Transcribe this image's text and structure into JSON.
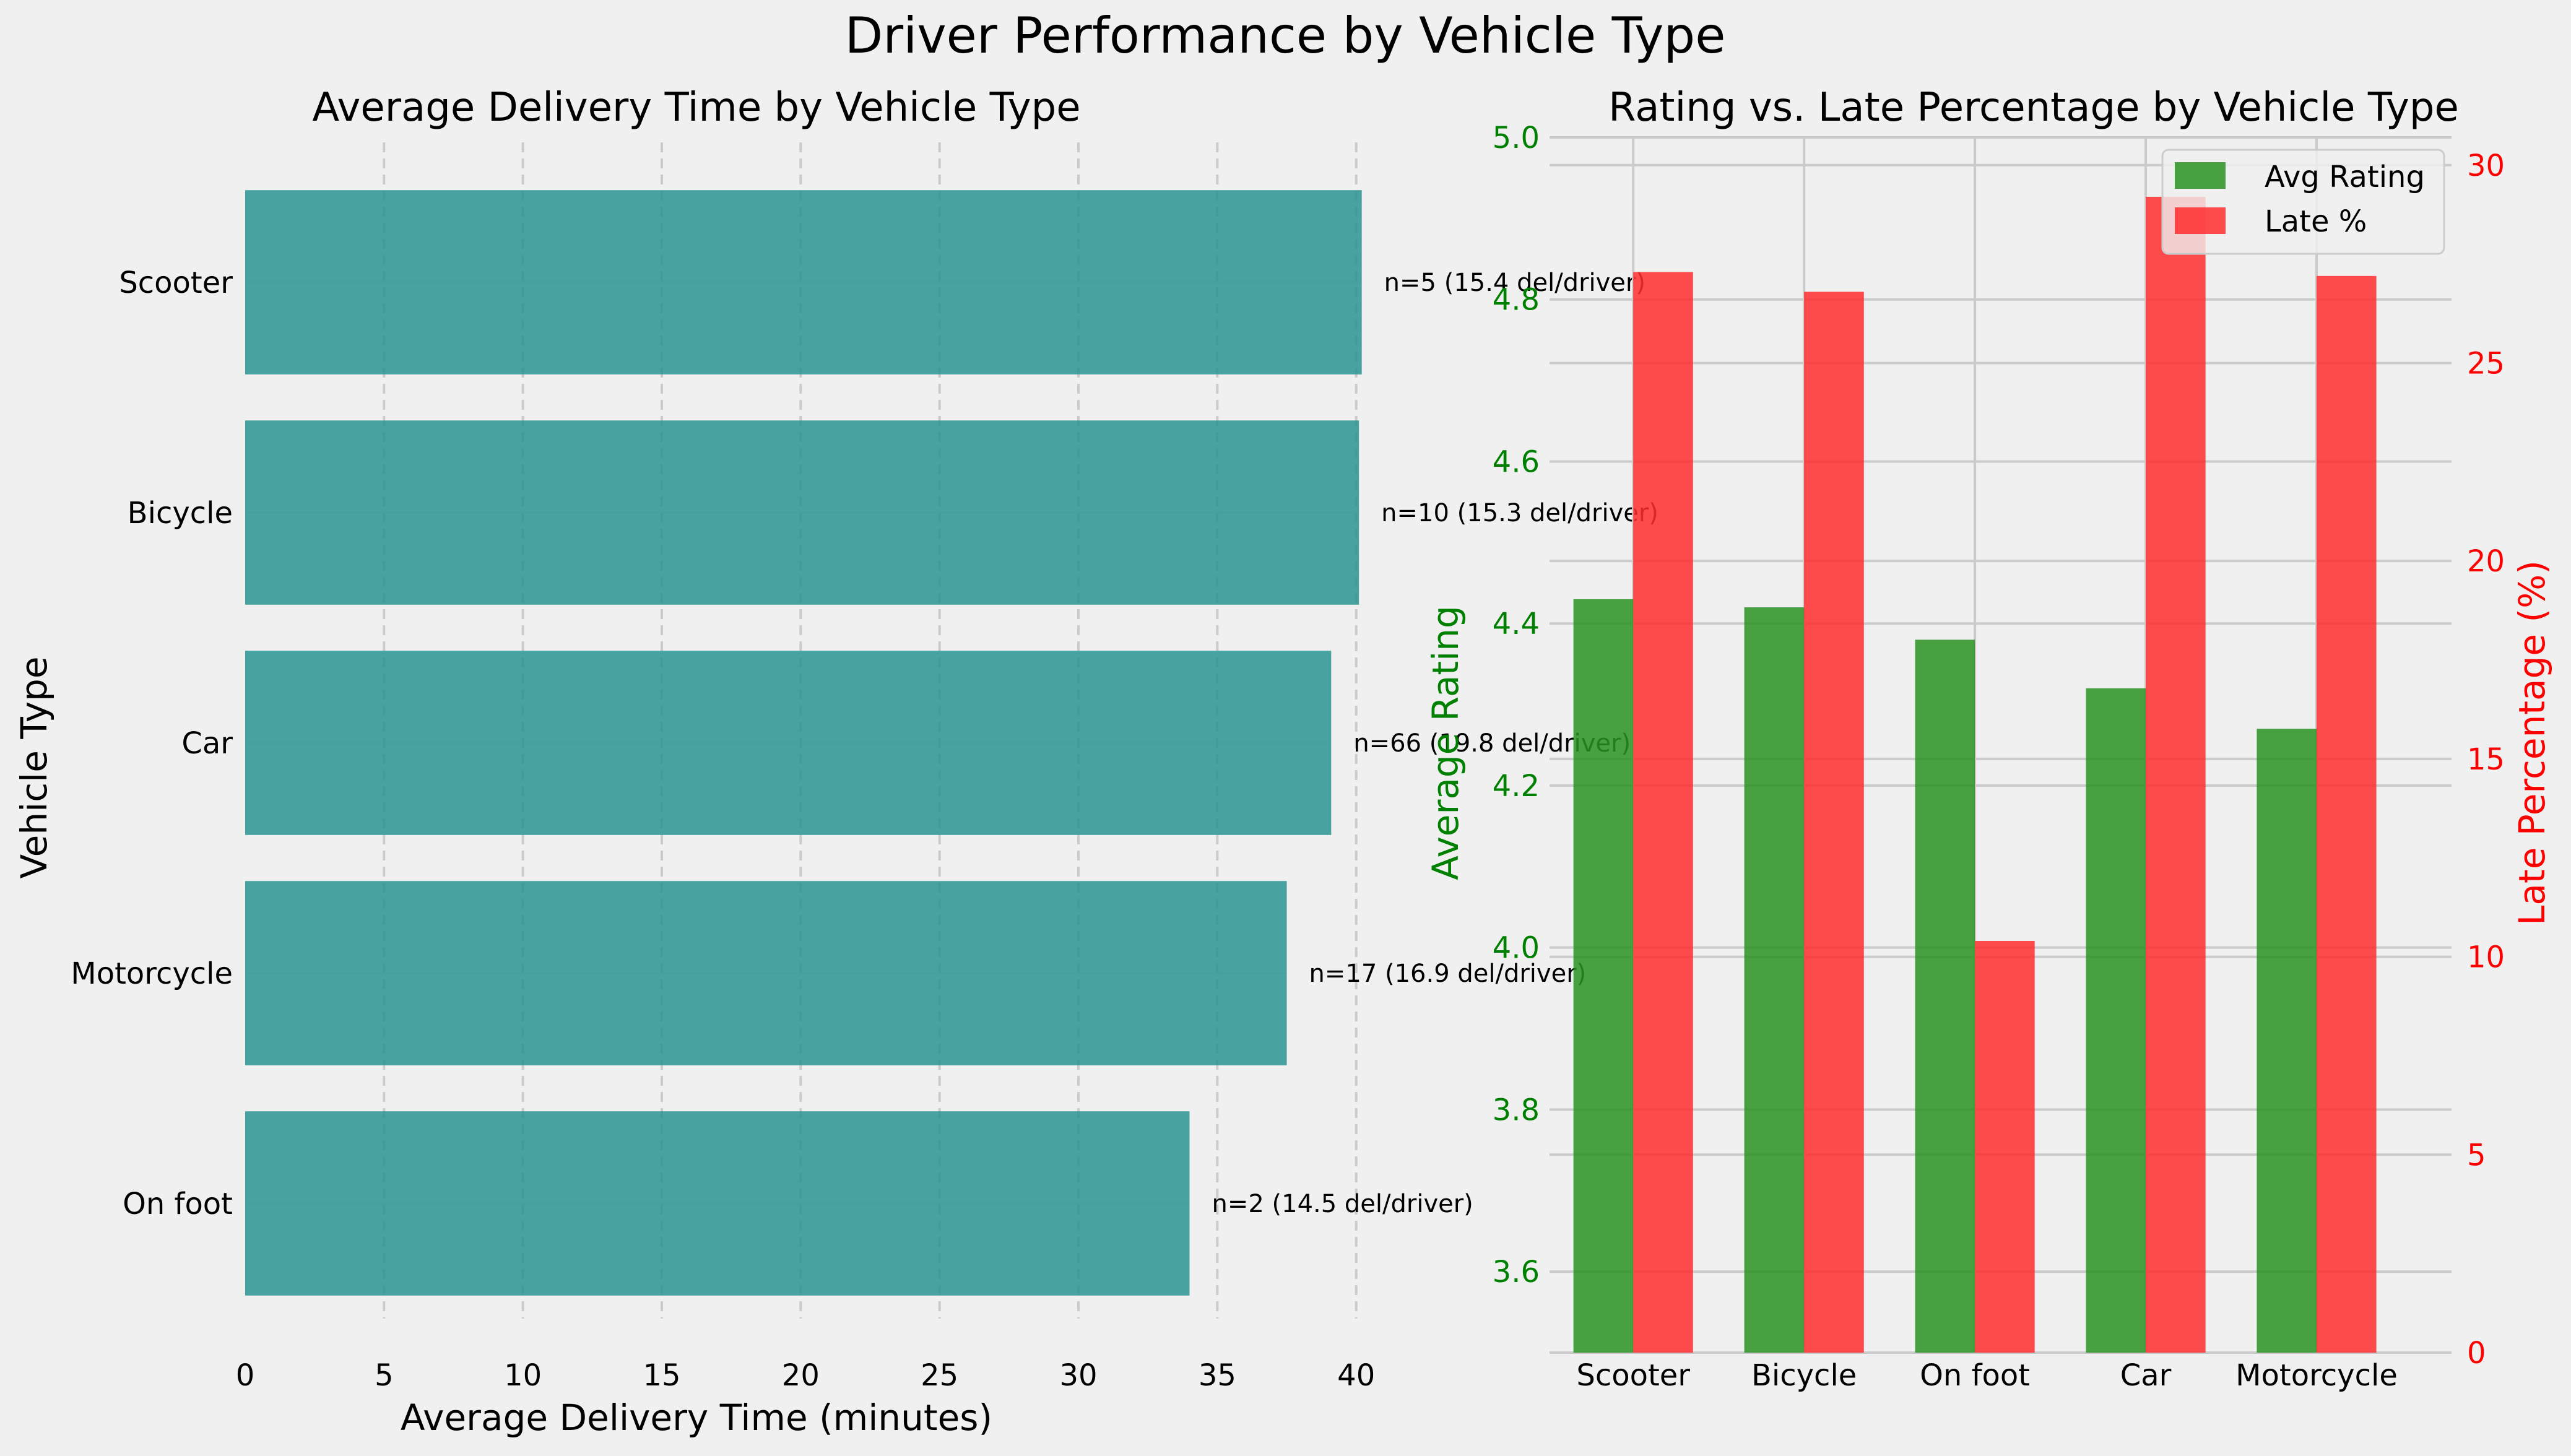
{
  "suptitle": "Driver Performance by Vehicle Type",
  "colors": {
    "background": "#f0f0f0",
    "grid": "#cbcbcb",
    "bar_time": "#2a9490",
    "rating": "#2a9322",
    "late": "#ff2d2d",
    "rating_axis": "#008000",
    "late_axis": "#ff0000",
    "text": "#000000"
  },
  "chart_data": [
    {
      "type": "bar",
      "orientation": "horizontal",
      "title": "Average Delivery Time by Vehicle Type",
      "xlabel": "Average Delivery Time (minutes)",
      "ylabel": "Vehicle Type",
      "categories": [
        "Scooter",
        "Bicycle",
        "Car",
        "Motorcycle",
        "On foot"
      ],
      "values": [
        40.2,
        40.1,
        39.1,
        37.5,
        34.0
      ],
      "annotations": [
        "n=5 (15.4 del/driver)",
        "n=10 (15.3 del/driver)",
        "n=66 (19.8 del/driver)",
        "n=17 (16.9 del/driver)",
        "n=2 (14.5 del/driver)"
      ],
      "xlim": [
        0,
        41.5
      ],
      "xticks": [
        0,
        5,
        10,
        15,
        20,
        25,
        30,
        35,
        40
      ],
      "grid": "vertical dashed"
    },
    {
      "type": "bar",
      "title": "Rating vs. Late Percentage by Vehicle Type",
      "categories": [
        "Scooter",
        "Bicycle",
        "On foot",
        "Car",
        "Motorcycle"
      ],
      "series": [
        {
          "name": "Avg Rating",
          "axis": "left",
          "values": [
            4.43,
            4.42,
            4.38,
            4.32,
            4.27
          ]
        },
        {
          "name": "Late %",
          "axis": "right",
          "values": [
            27.3,
            26.8,
            10.4,
            29.2,
            27.2
          ]
        }
      ],
      "ylabel": "Average Rating",
      "y2label": "Late Percentage (%)",
      "ylim": [
        3.5,
        5.0
      ],
      "yticks": [
        3.6,
        3.8,
        4.0,
        4.2,
        4.4,
        4.6,
        4.8,
        5.0
      ],
      "y2lim": [
        0,
        30.7
      ],
      "y2ticks": [
        0,
        5,
        10,
        15,
        20,
        25,
        30
      ],
      "legend": "top-right",
      "grid": "both"
    }
  ]
}
